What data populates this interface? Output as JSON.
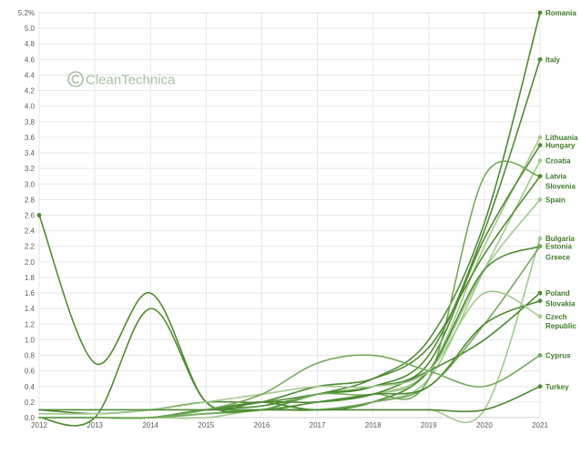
{
  "watermark": {
    "text": "CleanTechnica",
    "icon": "cleantechnica-logo-icon"
  },
  "colors": {
    "grid": "#e6e6e6",
    "axis": "#cfcfcf",
    "dark": "#4e8b33",
    "mid": "#73a85a",
    "light": "#a3c98f"
  },
  "chart_data": {
    "type": "line",
    "x": [
      2012,
      2013,
      2014,
      2015,
      2016,
      2017,
      2018,
      2019,
      2020,
      2021
    ],
    "x_tick_labels": [
      "2012",
      "2013",
      "2014",
      "2015",
      "2016",
      "2017",
      "2018",
      "2019",
      "2020",
      "2021"
    ],
    "ylim": [
      0,
      5.2
    ],
    "y_tick_labels": [
      "0.0",
      "0.2",
      "0.4",
      "0.6",
      "0.8",
      "1.0",
      "1.2",
      "1.4",
      "1.6",
      "1.8",
      "2.0",
      "2.2",
      "2.4",
      "2.6",
      "2.8",
      "3.0",
      "3.2",
      "3.4",
      "3.6",
      "3.8",
      "4.0",
      "4.2",
      "4.4",
      "4.6",
      "4.8",
      "5.0",
      "5.2%"
    ],
    "grid": true,
    "legend": "none",
    "series": [
      {
        "name": "Romania",
        "shade": "dark",
        "values": [
          0,
          0,
          0,
          0.1,
          0.15,
          0.3,
          0.5,
          1.0,
          2.5,
          5.2
        ]
      },
      {
        "name": "Italy",
        "shade": "dark",
        "values": [
          0.1,
          0.05,
          0.1,
          0.2,
          0.2,
          0.3,
          0.4,
          0.8,
          2.4,
          4.6
        ]
      },
      {
        "name": "Lithuania",
        "shade": "light",
        "values": [
          0,
          0,
          0,
          0.05,
          0.1,
          0.2,
          0.3,
          0.6,
          2.2,
          3.6
        ]
      },
      {
        "name": "Hungary",
        "shade": "dark",
        "values": [
          0,
          0,
          0,
          0.1,
          0.1,
          0.3,
          0.4,
          0.7,
          2.3,
          3.5
        ]
      },
      {
        "name": "Croatia",
        "shade": "light",
        "values": [
          0,
          0,
          0,
          0.05,
          0.1,
          0.1,
          0.2,
          0.5,
          1.9,
          3.3
        ]
      },
      {
        "name": "Latvia",
        "shade": "mid",
        "values": [
          0,
          0,
          0,
          0.05,
          0.1,
          0.3,
          0.3,
          0.5,
          3.1,
          3.1
        ]
      },
      {
        "name": "Slovenia",
        "shade": "dark",
        "values": [
          0,
          0,
          0,
          0.1,
          0.2,
          0.4,
          0.5,
          0.9,
          2.1,
          3.1
        ]
      },
      {
        "name": "Spain",
        "shade": "light",
        "values": [
          0,
          0,
          0,
          0.1,
          0.2,
          0.2,
          0.3,
          0.6,
          1.9,
          2.8
        ]
      },
      {
        "name": "Bulgaria",
        "shade": "light",
        "values": [
          0,
          0,
          0,
          0,
          0.1,
          0.1,
          0.1,
          0.1,
          0.1,
          2.3
        ]
      },
      {
        "name": "Estonia",
        "shade": "dark",
        "values": [
          2.6,
          0.7,
          1.6,
          0.2,
          0.2,
          0.1,
          0.2,
          0.6,
          1.9,
          2.2
        ]
      },
      {
        "name": "Greece",
        "shade": "mid",
        "values": [
          0,
          0,
          0,
          0.05,
          0.1,
          0.1,
          0.2,
          0.4,
          1.2,
          2.2
        ]
      },
      {
        "name": "Poland",
        "shade": "dark",
        "values": [
          0,
          0,
          0,
          0.1,
          0.2,
          0.2,
          0.3,
          0.6,
          1.0,
          1.6
        ]
      },
      {
        "name": "Slovakia",
        "shade": "dark",
        "values": [
          0,
          0,
          1.4,
          0.2,
          0.1,
          0.2,
          0.3,
          0.4,
          1.2,
          1.5
        ]
      },
      {
        "name": "Czech Republic",
        "shade": "light",
        "values": [
          0.05,
          0.05,
          0.1,
          0.2,
          0.3,
          0.4,
          0.4,
          0.6,
          1.6,
          1.3
        ]
      },
      {
        "name": "Cyprus",
        "shade": "mid",
        "values": [
          0,
          0,
          0,
          0.1,
          0.3,
          0.7,
          0.8,
          0.6,
          0.4,
          0.8
        ]
      },
      {
        "name": "Turkey",
        "shade": "dark",
        "values": [
          0.1,
          0.1,
          0.1,
          0.1,
          0.1,
          0.1,
          0.1,
          0.1,
          0.1,
          0.4
        ]
      }
    ]
  }
}
